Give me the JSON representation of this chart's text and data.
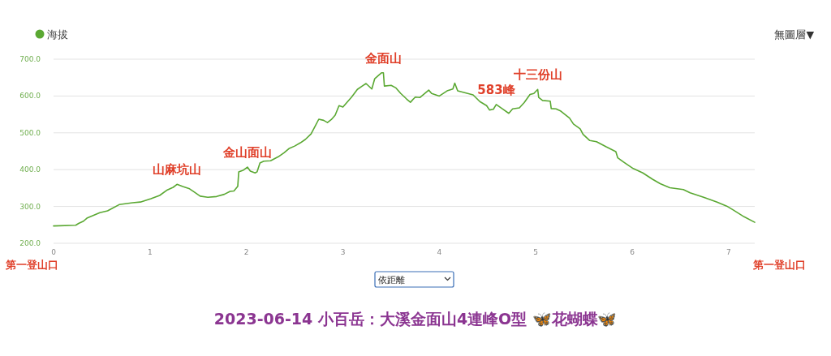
{
  "chart_data": {
    "type": "line",
    "title": "2023-06-14 小百岳：大溪金面山4連峰O型 🦋花蝴蝶🦋",
    "x": [
      0,
      0.23,
      0.26,
      0.31,
      0.35,
      0.48,
      0.56,
      0.68,
      0.82,
      0.9,
      1.01,
      1.1,
      1.18,
      1.24,
      1.28,
      1.34,
      1.41,
      1.46,
      1.52,
      1.6,
      1.69,
      1.77,
      1.83,
      1.87,
      1.91,
      1.92,
      1.97,
      2.01,
      2.04,
      2.09,
      2.11,
      2.14,
      2.18,
      2.25,
      2.33,
      2.39,
      2.44,
      2.5,
      2.56,
      2.61,
      2.67,
      2.71,
      2.75,
      2.8,
      2.84,
      2.88,
      2.92,
      2.96,
      3.0,
      3.09,
      3.15,
      3.2,
      3.24,
      3.3,
      3.33,
      3.37,
      3.4,
      3.42,
      3.43,
      3.5,
      3.55,
      3.6,
      3.66,
      3.7,
      3.75,
      3.8,
      3.89,
      3.92,
      4.0,
      4.08,
      4.14,
      4.16,
      4.19,
      4.35,
      4.42,
      4.49,
      4.52,
      4.56,
      4.59,
      4.65,
      4.72,
      4.76,
      4.83,
      4.88,
      4.94,
      4.98,
      5.02,
      5.03,
      5.07,
      5.15,
      5.16,
      5.21,
      5.26,
      5.35,
      5.39,
      5.46,
      5.49,
      5.56,
      5.63,
      5.73,
      5.83,
      5.85,
      5.92,
      6.01,
      6.11,
      6.21,
      6.29,
      6.39,
      6.53,
      6.6,
      6.74,
      6.88,
      6.98,
      7.05,
      7.16,
      7.27
    ],
    "series": [
      {
        "name": "海拔",
        "color": "#5aa832",
        "values": [
          247,
          249,
          254,
          260,
          269,
          283,
          288,
          305,
          310,
          312,
          321,
          330,
          345,
          352,
          360,
          354,
          348,
          339,
          328,
          325,
          327,
          333,
          341,
          342,
          355,
          394,
          399,
          407,
          396,
          391,
          394,
          418,
          423,
          424,
          435,
          446,
          457,
          464,
          473,
          482,
          497,
          517,
          537,
          534,
          528,
          536,
          548,
          574,
          570,
          597,
          618,
          627,
          634,
          619,
          647,
          656,
          663,
          663,
          627,
          629,
          622,
          607,
          592,
          583,
          597,
          596,
          616,
          607,
          600,
          614,
          619,
          635,
          614,
          603,
          585,
          574,
          562,
          564,
          577,
          566,
          553,
          565,
          568,
          582,
          604,
          607,
          618,
          596,
          588,
          586,
          566,
          565,
          559,
          540,
          524,
          511,
          496,
          479,
          476,
          462,
          449,
          432,
          419,
          403,
          391,
          374,
          362,
          351,
          346,
          337,
          325,
          312,
          301,
          290,
          272,
          257
        ]
      }
    ],
    "xlim": [
      0,
      7.27
    ],
    "ylim": [
      200,
      700
    ],
    "xticks": [
      0,
      1,
      2,
      3,
      4,
      5,
      6,
      7
    ],
    "yticks": [
      {
        "value": 200,
        "label": "200.0"
      },
      {
        "value": 300,
        "label": "300.0"
      },
      {
        "value": 400,
        "label": "400.0"
      },
      {
        "value": 500,
        "label": "500.0"
      },
      {
        "value": 600,
        "label": "600.0"
      },
      {
        "value": 700,
        "label": "700.0"
      }
    ],
    "grid": "y",
    "legend": "top left",
    "marker": "none",
    "line_style": "solid",
    "annotations": [
      "無圖層▼",
      "依距離",
      "第一登山口",
      "第一登山口",
      {
        "text": "山麻坑山",
        "x": 1.28,
        "y": 360
      },
      {
        "text": "金山面山",
        "x": 2.01,
        "y": 407
      },
      {
        "text": "金面山",
        "x": 3.42,
        "y": 663
      },
      {
        "text": "583峰",
        "x": 4.59,
        "y": 577
      },
      {
        "text": "十三份山",
        "x": 5.02,
        "y": 618
      }
    ]
  }
}
